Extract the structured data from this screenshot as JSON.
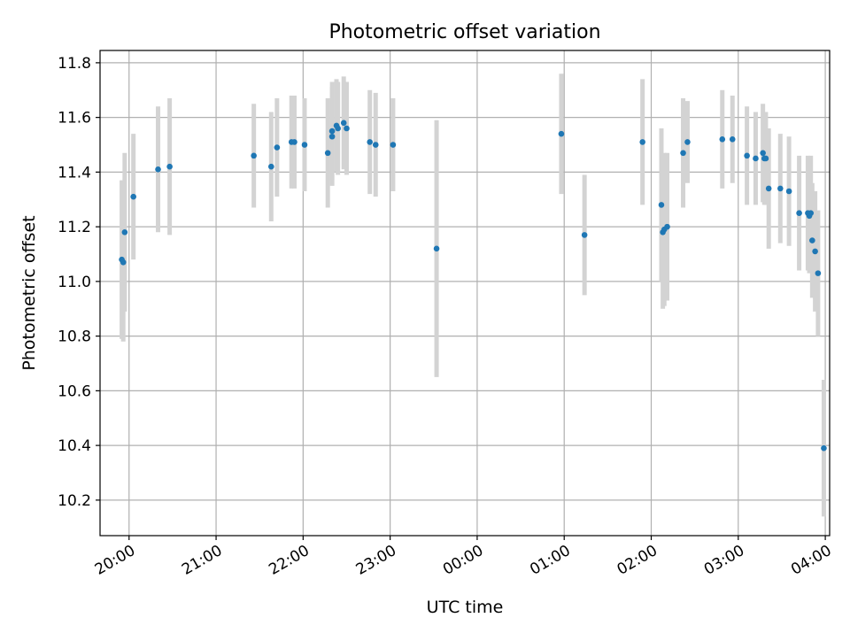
{
  "chart_data": {
    "type": "scatter",
    "title": "Photometric offset variation",
    "xlabel": "UTC time",
    "ylabel": "Photometric offset",
    "x_axis_kind": "time",
    "x_start_date": "",
    "xlim": [
      "19:40",
      "04:03"
    ],
    "ylim": [
      10.07,
      11.845
    ],
    "x_ticks": [
      "20:00",
      "21:00",
      "22:00",
      "23:00",
      "00:00",
      "01:00",
      "02:00",
      "03:00",
      "04:00"
    ],
    "y_ticks": [
      10.2,
      10.4,
      10.6,
      10.8,
      11.0,
      11.2,
      11.4,
      11.6,
      11.8
    ],
    "y_tick_labels": [
      "10.2",
      "10.4",
      "10.6",
      "10.8",
      "11.0",
      "11.2",
      "11.4",
      "11.6",
      "11.8"
    ],
    "grid": true,
    "colors": {
      "point": "#1f77b4",
      "errorbar": "#d3d3d3",
      "grid": "#b0b0b0"
    },
    "series": [
      {
        "marker": "point",
        "x": [
          "19:55",
          "19:56",
          "19:57",
          "20:03",
          "20:20",
          "20:28",
          "21:26",
          "21:38",
          "21:42",
          "21:52",
          "21:54",
          "22:01",
          "22:17",
          "22:20",
          "22:20",
          "22:23",
          "22:24",
          "22:28",
          "22:30",
          "22:46",
          "22:50",
          "23:02",
          "23:32",
          "00:58",
          "01:14",
          "01:54",
          "02:07",
          "02:08",
          "02:09",
          "02:11",
          "02:22",
          "02:25",
          "02:49",
          "02:56",
          "03:06",
          "03:12",
          "03:17",
          "03:18",
          "03:19",
          "03:21",
          "03:29",
          "03:35",
          "03:42",
          "03:48",
          "03:49",
          "03:50",
          "03:51",
          "03:53",
          "03:55",
          "03:59"
        ],
        "y": [
          11.08,
          11.07,
          11.18,
          11.31,
          11.41,
          11.42,
          11.46,
          11.42,
          11.49,
          11.51,
          11.51,
          11.5,
          11.47,
          11.53,
          11.55,
          11.57,
          11.56,
          11.58,
          11.56,
          11.51,
          11.5,
          11.5,
          11.12,
          11.54,
          11.17,
          11.51,
          11.28,
          11.18,
          11.19,
          11.2,
          11.47,
          11.51,
          11.52,
          11.52,
          11.46,
          11.45,
          11.47,
          11.45,
          11.45,
          11.34,
          11.34,
          11.33,
          11.25,
          11.25,
          11.24,
          11.25,
          11.15,
          11.11,
          11.03,
          10.39
        ],
        "yerr": [
          0.29,
          0.29,
          0.29,
          0.23,
          0.23,
          0.25,
          0.19,
          0.2,
          0.18,
          0.17,
          0.17,
          0.17,
          0.2,
          0.18,
          0.18,
          0.17,
          0.17,
          0.17,
          0.17,
          0.19,
          0.19,
          0.17,
          0.47,
          0.22,
          0.22,
          0.23,
          0.28,
          0.28,
          0.28,
          0.27,
          0.2,
          0.15,
          0.18,
          0.16,
          0.18,
          0.17,
          0.18,
          0.17,
          0.17,
          0.22,
          0.2,
          0.2,
          0.21,
          0.21,
          0.21,
          0.21,
          0.21,
          0.22,
          0.23,
          0.25
        ]
      }
    ]
  }
}
